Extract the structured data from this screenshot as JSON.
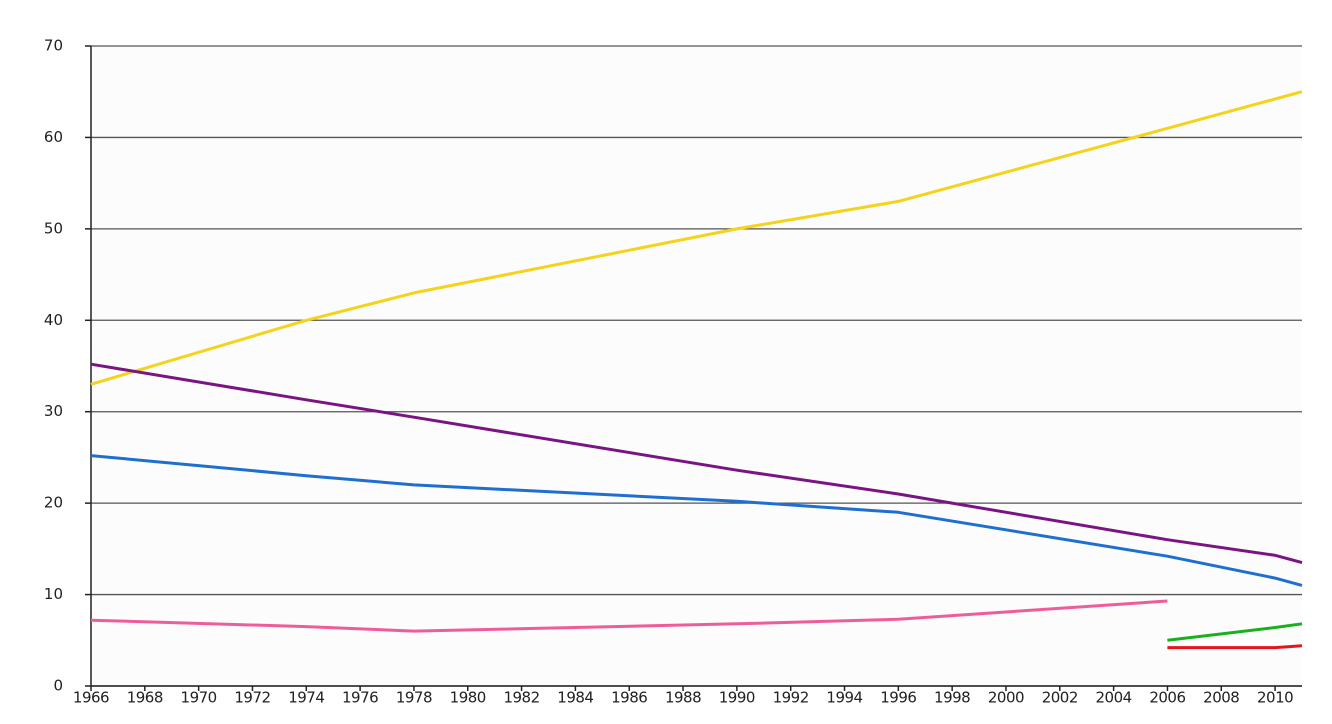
{
  "chart_data": {
    "type": "line",
    "x": [
      1966,
      1974,
      1978,
      1990,
      1996,
      2006,
      2010,
      2011
    ],
    "series": [
      {
        "color": "#f5d21c",
        "values": [
          33,
          40,
          43,
          50,
          53,
          61,
          64.2,
          65
        ]
      },
      {
        "color": "#7a1483",
        "values": [
          35.2,
          31.3,
          29.4,
          23.6,
          21,
          16,
          14.3,
          13.5
        ]
      },
      {
        "color": "#1f6fd0",
        "values": [
          25.2,
          23,
          22,
          20.2,
          19,
          14.2,
          11.8,
          11
        ]
      },
      {
        "color": "#ee5d9a",
        "values": [
          7.2,
          6.5,
          6,
          6.8,
          7.3,
          9.3,
          null,
          null
        ]
      },
      {
        "color": "#18b01d",
        "values": [
          null,
          null,
          null,
          null,
          null,
          5,
          6.4,
          6.8
        ]
      },
      {
        "color": "#e3161c",
        "values": [
          null,
          null,
          null,
          null,
          null,
          4.2,
          4.2,
          4.4
        ]
      }
    ],
    "xlim": [
      1966,
      2011
    ],
    "ylim": [
      0,
      70
    ],
    "xticks": [
      1966,
      1968,
      1970,
      1972,
      1974,
      1976,
      1978,
      1980,
      1982,
      1984,
      1986,
      1988,
      1990,
      1992,
      1994,
      1996,
      1998,
      2000,
      2002,
      2004,
      2006,
      2008,
      2010
    ],
    "yticks": [
      0,
      10,
      20,
      30,
      40,
      50,
      60,
      70
    ],
    "grid": true
  }
}
